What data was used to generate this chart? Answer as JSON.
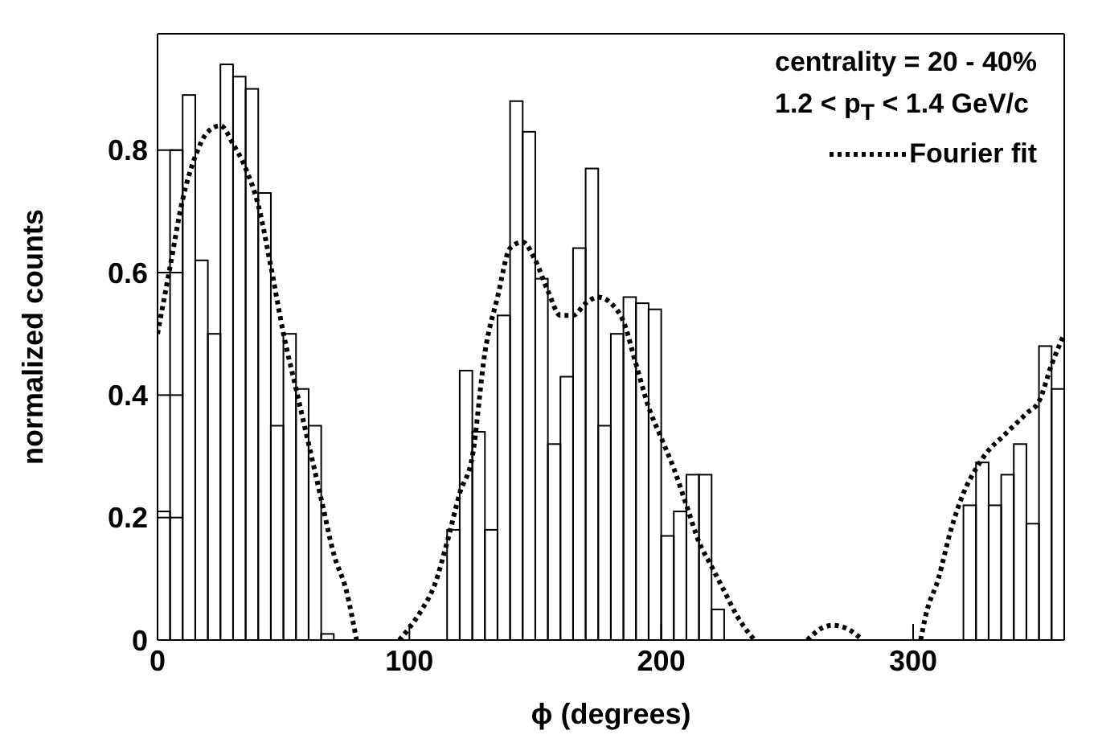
{
  "chart_data": {
    "type": "histogram",
    "xlabel": "ϕ (degrees)",
    "ylabel": "normalized counts",
    "annotations": [
      "centrality = 20 - 40%",
      "1.2 < p$_{T}$ < 1.4 GeV/c"
    ],
    "xlim": [
      0,
      360
    ],
    "xticks": [
      0,
      100,
      200,
      300
    ],
    "ylim": [
      0,
      0.99
    ],
    "yticks": [
      0,
      0.2,
      0.4,
      0.6,
      0.8
    ],
    "legend": "top right",
    "series": [
      {
        "color": "#000000",
        "bins": [
          0,
          5,
          10,
          15,
          20,
          25,
          30,
          35,
          40,
          45,
          50,
          55,
          60,
          65,
          70,
          75,
          80,
          85,
          90,
          95,
          100,
          105,
          110,
          115,
          120,
          125,
          130,
          135,
          140,
          145,
          150,
          155,
          160,
          165,
          170,
          175,
          180,
          185,
          190,
          195,
          200,
          205,
          210,
          215,
          220,
          225,
          230,
          235,
          240,
          245,
          250,
          255,
          260,
          265,
          270,
          275,
          280,
          285,
          290,
          295,
          300,
          305,
          310,
          315,
          320,
          325,
          330,
          335,
          340,
          345,
          350,
          355,
          360
        ],
        "values": [
          0.21,
          0.8,
          0.89,
          0.62,
          0.5,
          0.94,
          0.92,
          0.9,
          0.73,
          0.35,
          0.5,
          0.41,
          0.35,
          0.01,
          0,
          0,
          0,
          0,
          0,
          0,
          0,
          0,
          0,
          0.18,
          0.44,
          0.34,
          0.18,
          0.53,
          0.88,
          0.83,
          0.59,
          0.32,
          0.43,
          0.64,
          0.77,
          0.35,
          0.5,
          0.56,
          0.55,
          0.54,
          0.17,
          0.21,
          0.27,
          0.27,
          0.05,
          0,
          0,
          0,
          0,
          0,
          0,
          0,
          0,
          0,
          0,
          0,
          0,
          0,
          0,
          0,
          0,
          0,
          0,
          0,
          0.22,
          0.29,
          0.22,
          0.27,
          0.32,
          0.19,
          0.48,
          0.41
        ]
      },
      {
        "type": "line",
        "name": "Fourier fit",
        "color": "#000000",
        "line_style": "dotted",
        "x": [
          0,
          5,
          10,
          15,
          20,
          25,
          30,
          35,
          40,
          45,
          50,
          55,
          60,
          65,
          70,
          75,
          79,
          88,
          96,
          100,
          105,
          110,
          115,
          120,
          125,
          130,
          135,
          140,
          145,
          150,
          155,
          160,
          165,
          170,
          175,
          180,
          185,
          190,
          195,
          200,
          205,
          210,
          215,
          220,
          225,
          230,
          235,
          237,
          250,
          258,
          264,
          268,
          274,
          280,
          292,
          303,
          305,
          310,
          315,
          320,
          325,
          330,
          335,
          340,
          345,
          350,
          355,
          360
        ],
        "values": [
          0.5,
          0.61,
          0.72,
          0.79,
          0.83,
          0.84,
          0.81,
          0.77,
          0.71,
          0.61,
          0.5,
          0.41,
          0.32,
          0.23,
          0.14,
          0.08,
          0,
          null,
          0,
          0.02,
          0.05,
          0.09,
          0.16,
          0.24,
          0.3,
          0.47,
          0.56,
          0.64,
          0.65,
          0.62,
          0.57,
          0.53,
          0.53,
          0.55,
          0.56,
          0.55,
          0.52,
          0.45,
          0.38,
          0.33,
          0.28,
          0.22,
          0.16,
          0.12,
          0.08,
          0.04,
          0.01,
          0,
          null,
          0,
          0.02,
          0.024,
          0.018,
          0,
          null,
          0,
          0.04,
          0.1,
          0.18,
          0.24,
          0.28,
          0.31,
          0.33,
          0.35,
          0.37,
          0.39,
          0.45,
          0.5
        ]
      }
    ]
  }
}
